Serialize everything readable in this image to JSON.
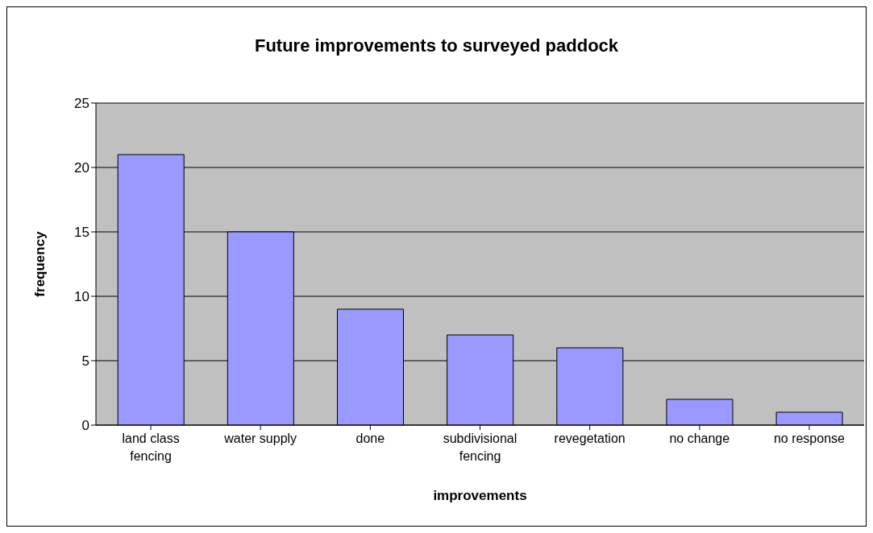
{
  "chart_data": {
    "type": "bar",
    "title": "Future improvements to surveyed paddock",
    "xlabel": "improvements",
    "ylabel": "frequency",
    "categories": [
      "land class fencing",
      "water supply",
      "done",
      "subdivisional fencing",
      "revegetation",
      "no change",
      "no response"
    ],
    "values": [
      21,
      15,
      9,
      7,
      6,
      2,
      1
    ],
    "color": "#9999ff",
    "ylim": [
      0,
      25
    ],
    "yticks": [
      0,
      5,
      10,
      15,
      20,
      25
    ],
    "grid": "y"
  }
}
